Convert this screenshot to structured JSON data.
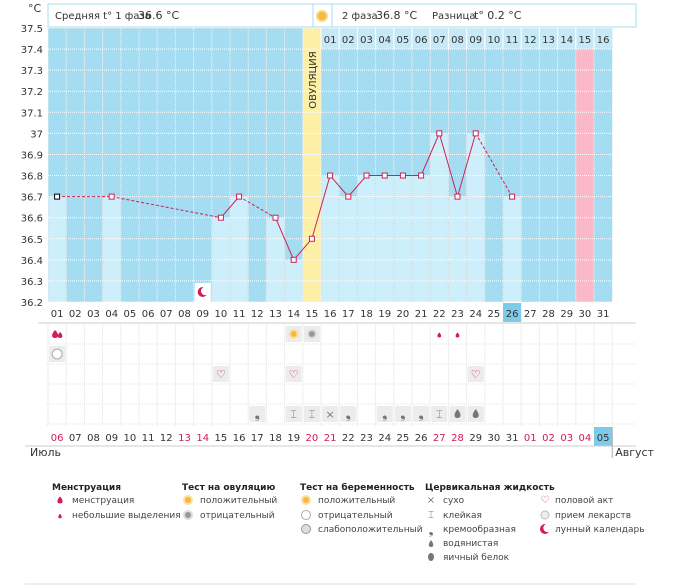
{
  "header": {
    "unit": "°C",
    "phase1_label": "Средняя t° 1 фаза",
    "phase1_value": "36.6 °C",
    "phase2_label": "2 фаза",
    "phase2_value": "36.8 °C",
    "diff_label": "Разница",
    "diff_value": "t° 0.2 °C"
  },
  "ovulation_label": "ОВУЛЯЦИЯ",
  "phase2_days": [
    "01",
    "02",
    "03",
    "04",
    "05",
    "06",
    "07",
    "08",
    "09",
    "10",
    "11",
    "12",
    "13",
    "14",
    "15",
    "16"
  ],
  "cycle_days": [
    "01",
    "02",
    "03",
    "04",
    "05",
    "06",
    "07",
    "08",
    "09",
    "10",
    "11",
    "12",
    "13",
    "14",
    "15",
    "16",
    "17",
    "18",
    "19",
    "20",
    "21",
    "22",
    "23",
    "24",
    "25",
    "26",
    "27",
    "28",
    "29",
    "30",
    "31"
  ],
  "dates": [
    "06",
    "07",
    "08",
    "09",
    "10",
    "11",
    "12",
    "13",
    "14",
    "15",
    "16",
    "17",
    "18",
    "19",
    "20",
    "21",
    "22",
    "23",
    "24",
    "25",
    "26",
    "27",
    "28",
    "29",
    "30",
    "31",
    "01",
    "02",
    "03",
    "04",
    "05"
  ],
  "red_dates": [
    0,
    7,
    8,
    14,
    15,
    21,
    22,
    26,
    27,
    28,
    29
  ],
  "months": {
    "july": "Июль",
    "august": "Август"
  },
  "chart_data": {
    "type": "line",
    "ylim": [
      36.2,
      37.5
    ],
    "yticks": [
      "36.2",
      "36.3",
      "36.4",
      "36.5",
      "36.6",
      "36.7",
      "36.8",
      "36.9",
      "37",
      "37.1",
      "37.2",
      "37.3",
      "37.4",
      "37.5"
    ],
    "x": [
      1,
      4,
      10,
      11,
      13,
      14,
      15,
      16,
      17,
      18,
      19,
      20,
      21,
      22,
      23,
      24,
      26
    ],
    "values": [
      36.7,
      36.7,
      36.6,
      36.7,
      36.6,
      36.4,
      36.5,
      36.8,
      36.7,
      36.8,
      36.8,
      36.8,
      36.8,
      37.0,
      36.7,
      37.0,
      36.7
    ],
    "ovulation_day": 15,
    "current_day": 26,
    "pink_day": 30,
    "lunar_day": 9
  },
  "icons": {
    "menses_heavy": [
      1
    ],
    "menses_light": [
      22,
      23
    ],
    "ovulation_positive": [
      14
    ],
    "ovulation_negative": [
      15
    ],
    "pregnancy_negative": [
      1
    ],
    "intercourse": [
      10,
      14,
      24
    ],
    "fluid": [
      {
        "day": 12,
        "kind": "creamy"
      },
      {
        "day": 14,
        "kind": "sticky"
      },
      {
        "day": 15,
        "kind": "sticky"
      },
      {
        "day": 16,
        "kind": "dry"
      },
      {
        "day": 17,
        "kind": "creamy"
      },
      {
        "day": 19,
        "kind": "creamy"
      },
      {
        "day": 20,
        "kind": "creamy"
      },
      {
        "day": 21,
        "kind": "creamy"
      },
      {
        "day": 22,
        "kind": "sticky"
      },
      {
        "day": 23,
        "kind": "watery"
      },
      {
        "day": 24,
        "kind": "watery"
      }
    ]
  },
  "legend": {
    "menstruation": {
      "title": "Менструация",
      "items": [
        "менструация",
        "небольшие выделения"
      ]
    },
    "ovulation_test": {
      "title": "Тест на овуляцию",
      "items": [
        "положительный",
        "отрицательный"
      ]
    },
    "pregnancy_test": {
      "title": "Тест на беременность",
      "items": [
        "положительный",
        "отрицательный",
        "слабоположительный"
      ]
    },
    "cervical_fluid": {
      "title": "Цервикальная жидкость",
      "items": [
        "сухо",
        "клейкая",
        "кремообразная",
        "водянистая",
        "яичный белок"
      ]
    },
    "other": {
      "items": [
        "половой акт",
        "прием лекарств",
        "лунный календарь"
      ]
    }
  },
  "colors": {
    "bg": "#a4dcf2",
    "bar": "#cdeefb",
    "line": "#cc2255",
    "ovulation": "#fdf0a6",
    "pink": "#fbb8c8",
    "current": "#7dcbe8"
  }
}
